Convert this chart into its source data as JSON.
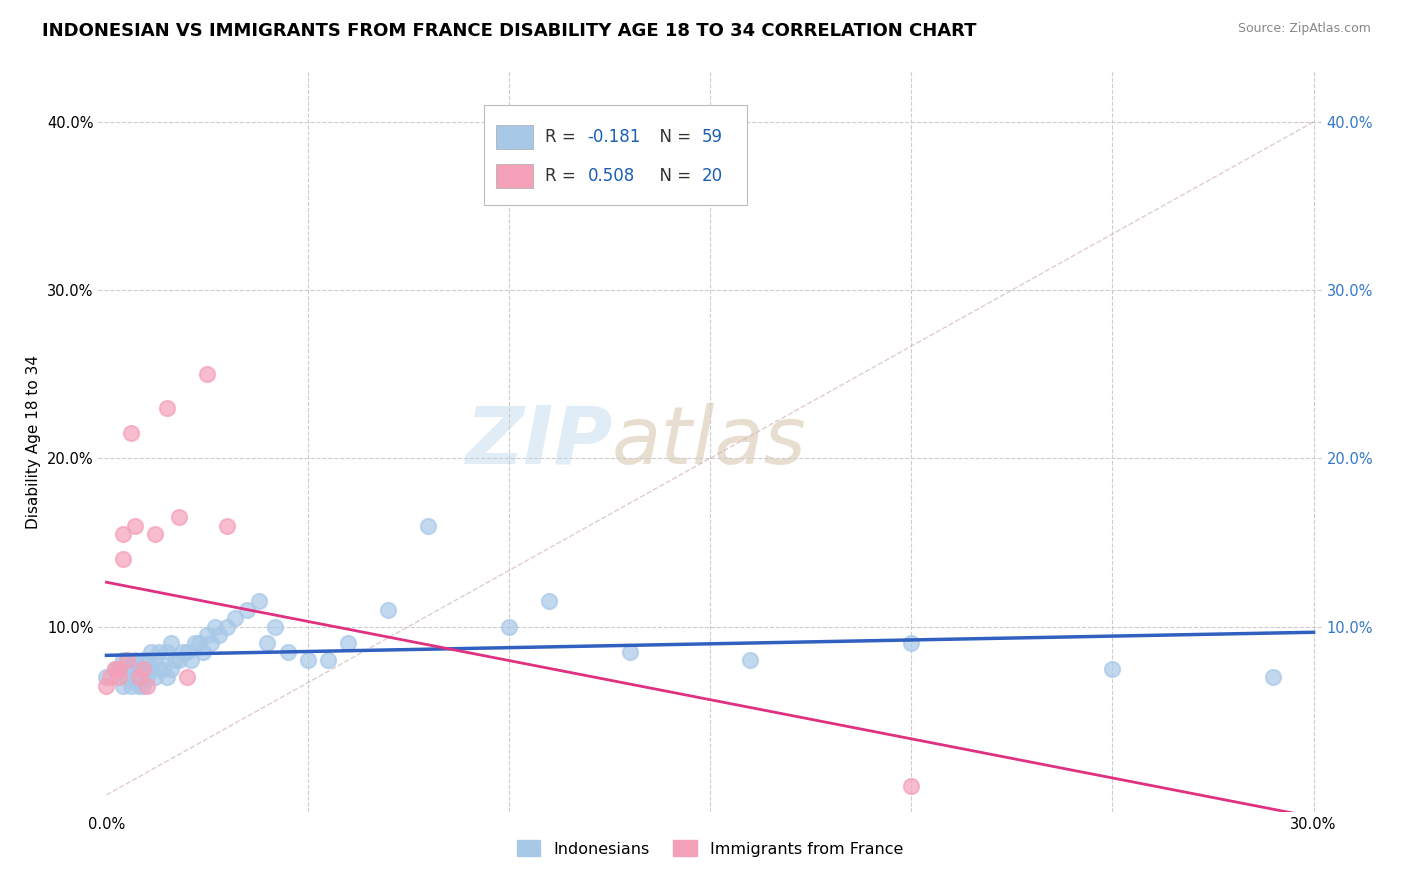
{
  "title": "INDONESIAN VS IMMIGRANTS FROM FRANCE DISABILITY AGE 18 TO 34 CORRELATION CHART",
  "source": "Source: ZipAtlas.com",
  "ylabel": "Disability Age 18 to 34",
  "xlim": [
    -0.002,
    0.302
  ],
  "ylim": [
    -0.01,
    0.43
  ],
  "r_indonesian": -0.181,
  "n_indonesian": 59,
  "r_france": 0.508,
  "n_france": 20,
  "color_indonesian": "#a8c8e8",
  "color_france": "#f4a0b8",
  "line_color_indonesian": "#3060c0",
  "line_color_france": "#e03080",
  "indonesian_x": [
    0.0,
    0.002,
    0.003,
    0.004,
    0.004,
    0.005,
    0.005,
    0.006,
    0.006,
    0.007,
    0.007,
    0.008,
    0.008,
    0.009,
    0.009,
    0.01,
    0.01,
    0.011,
    0.011,
    0.012,
    0.012,
    0.013,
    0.013,
    0.014,
    0.015,
    0.015,
    0.016,
    0.016,
    0.017,
    0.018,
    0.019,
    0.02,
    0.021,
    0.022,
    0.023,
    0.024,
    0.025,
    0.026,
    0.027,
    0.028,
    0.03,
    0.032,
    0.035,
    0.038,
    0.04,
    0.042,
    0.045,
    0.05,
    0.055,
    0.06,
    0.07,
    0.08,
    0.1,
    0.11,
    0.13,
    0.16,
    0.2,
    0.25,
    0.29
  ],
  "indonesian_y": [
    0.07,
    0.075,
    0.075,
    0.08,
    0.065,
    0.07,
    0.08,
    0.065,
    0.075,
    0.07,
    0.08,
    0.065,
    0.075,
    0.065,
    0.08,
    0.07,
    0.08,
    0.075,
    0.085,
    0.07,
    0.08,
    0.075,
    0.085,
    0.075,
    0.07,
    0.085,
    0.075,
    0.09,
    0.08,
    0.08,
    0.085,
    0.085,
    0.08,
    0.09,
    0.09,
    0.085,
    0.095,
    0.09,
    0.1,
    0.095,
    0.1,
    0.105,
    0.11,
    0.115,
    0.09,
    0.1,
    0.085,
    0.08,
    0.08,
    0.09,
    0.11,
    0.16,
    0.1,
    0.115,
    0.085,
    0.08,
    0.09,
    0.075,
    0.07
  ],
  "france_x": [
    0.0,
    0.001,
    0.002,
    0.003,
    0.003,
    0.004,
    0.004,
    0.005,
    0.006,
    0.007,
    0.008,
    0.009,
    0.01,
    0.012,
    0.015,
    0.018,
    0.02,
    0.025,
    0.03,
    0.2
  ],
  "france_y": [
    0.065,
    0.07,
    0.075,
    0.07,
    0.075,
    0.14,
    0.155,
    0.08,
    0.215,
    0.16,
    0.07,
    0.075,
    0.065,
    0.155,
    0.23,
    0.165,
    0.07,
    0.25,
    0.16,
    0.005
  ],
  "title_fontsize": 13,
  "axis_label_fontsize": 11,
  "tick_fontsize": 10.5
}
